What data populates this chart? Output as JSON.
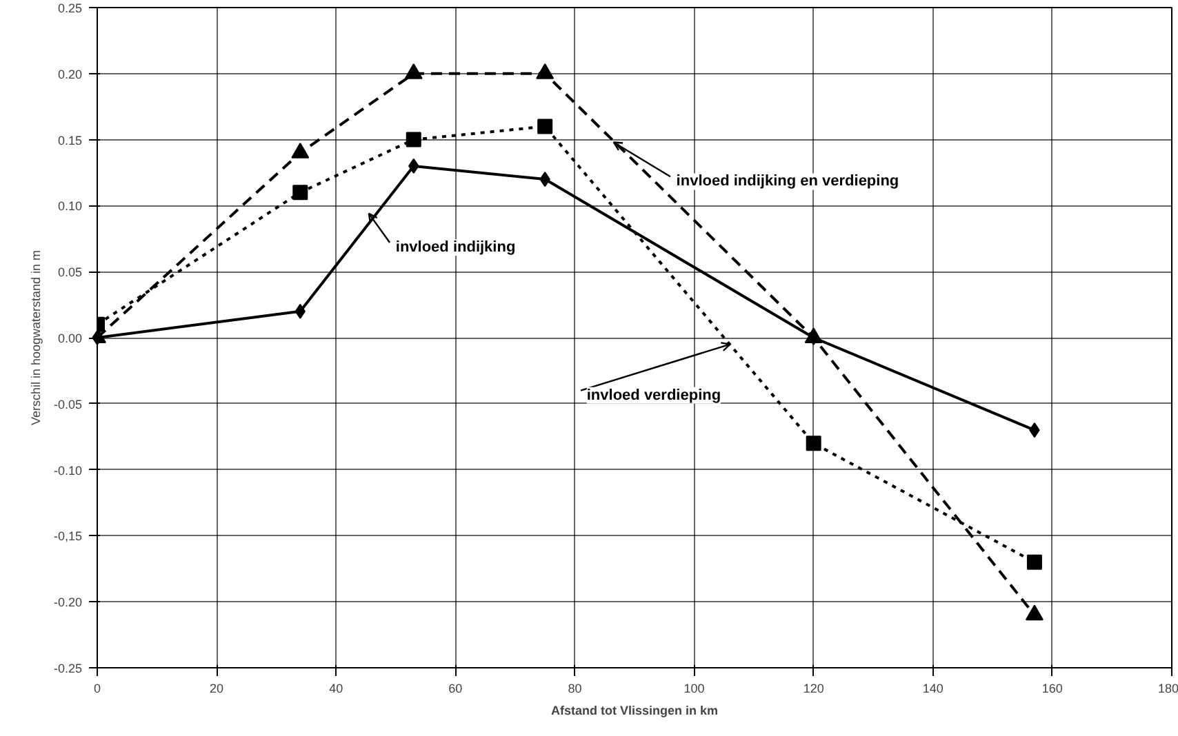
{
  "chart_data": {
    "type": "line",
    "xlabel": "Afstand tot Vlissingen in km",
    "ylabel": "Verschil in hoogwaterstand in m",
    "x": [
      0,
      34,
      53,
      75,
      120,
      157
    ],
    "series": [
      {
        "name": "invloed indijking",
        "color": "#000000",
        "marker": "diamond",
        "line_style": "solid",
        "values": [
          0.0,
          0.02,
          0.13,
          0.12,
          0.0,
          -0.07
        ]
      },
      {
        "name": "invloed verdieping",
        "color": "#000000",
        "marker": "square",
        "line_style": "dotted",
        "values": [
          0.01,
          0.11,
          0.15,
          0.16,
          -0.08,
          -0.17
        ]
      },
      {
        "name": "invloed indijking en verdieping",
        "color": "#000000",
        "marker": "triangle",
        "line_style": "dashed",
        "values": [
          0.0,
          0.14,
          0.2,
          0.2,
          0.0,
          -0.21
        ]
      }
    ],
    "xlim": [
      0,
      180
    ],
    "xticks": [
      0,
      20,
      40,
      60,
      80,
      100,
      120,
      140,
      160,
      180
    ],
    "ylim": [
      -0.25,
      0.25
    ],
    "yticks": [
      {
        "value": -0.25,
        "label": "-0.25"
      },
      {
        "value": -0.2,
        "label": "-0.20"
      },
      {
        "value": -0.15,
        "label": "-0,15"
      },
      {
        "value": -0.1,
        "label": "-0.10"
      },
      {
        "value": -0.05,
        "label": "-0.05"
      },
      {
        "value": 0,
        "label": "0.00"
      },
      {
        "value": 0.05,
        "label": "0.05"
      },
      {
        "value": 0.1,
        "label": "0.10"
      },
      {
        "value": 0.15,
        "label": "0.15"
      },
      {
        "value": 0.2,
        "label": "0.20"
      },
      {
        "value": 0.25,
        "label": "0.25"
      }
    ],
    "grid": true
  }
}
